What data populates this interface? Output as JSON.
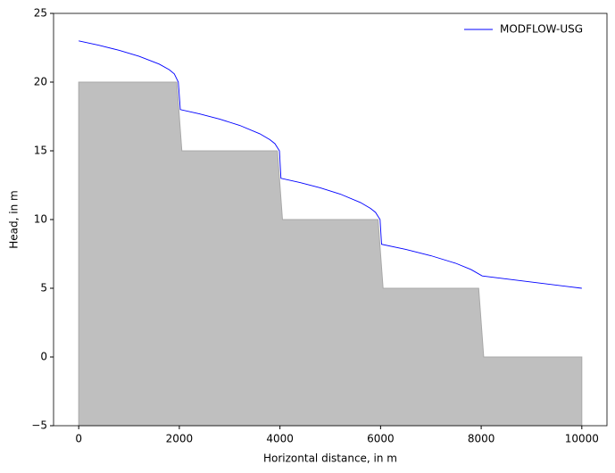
{
  "chart_data": {
    "type": "line",
    "xlabel": "Horizontal distance, in m",
    "ylabel": "Head, in m",
    "xlim": [
      -500,
      10500
    ],
    "ylim": [
      -5,
      25
    ],
    "xticks": [
      0,
      2000,
      4000,
      6000,
      8000,
      10000
    ],
    "yticks": [
      {
        "value": -5,
        "label": "−5"
      },
      0,
      5,
      10,
      15,
      20,
      25
    ],
    "legend": "upper right",
    "area": {
      "color": "#bfbfbf",
      "x": [
        0,
        1950,
        2050,
        3950,
        4050,
        5950,
        6050,
        7950,
        8050,
        10000
      ],
      "values": [
        20,
        20,
        15,
        15,
        10,
        10,
        5,
        5,
        0,
        0
      ]
    },
    "series": [
      {
        "name": "MODFLOW-USG",
        "color": "#0000ff",
        "x": [
          0,
          400,
          800,
          1200,
          1600,
          1800,
          1900,
          1980,
          2020,
          2400,
          2800,
          3200,
          3600,
          3800,
          3900,
          3990,
          4020,
          4400,
          4800,
          5200,
          5600,
          5800,
          5900,
          5990,
          6020,
          6500,
          7000,
          7500,
          7800,
          8020,
          10000
        ],
        "values": [
          23,
          22.68,
          22.32,
          21.88,
          21.31,
          20.9,
          20.6,
          20.0,
          18,
          17.69,
          17.31,
          16.85,
          16.24,
          15.81,
          15.52,
          15.0,
          13,
          12.69,
          12.31,
          11.85,
          11.24,
          10.81,
          10.52,
          10.0,
          8.2,
          7.83,
          7.37,
          6.81,
          6.36,
          5.9,
          5.0
        ]
      }
    ]
  }
}
